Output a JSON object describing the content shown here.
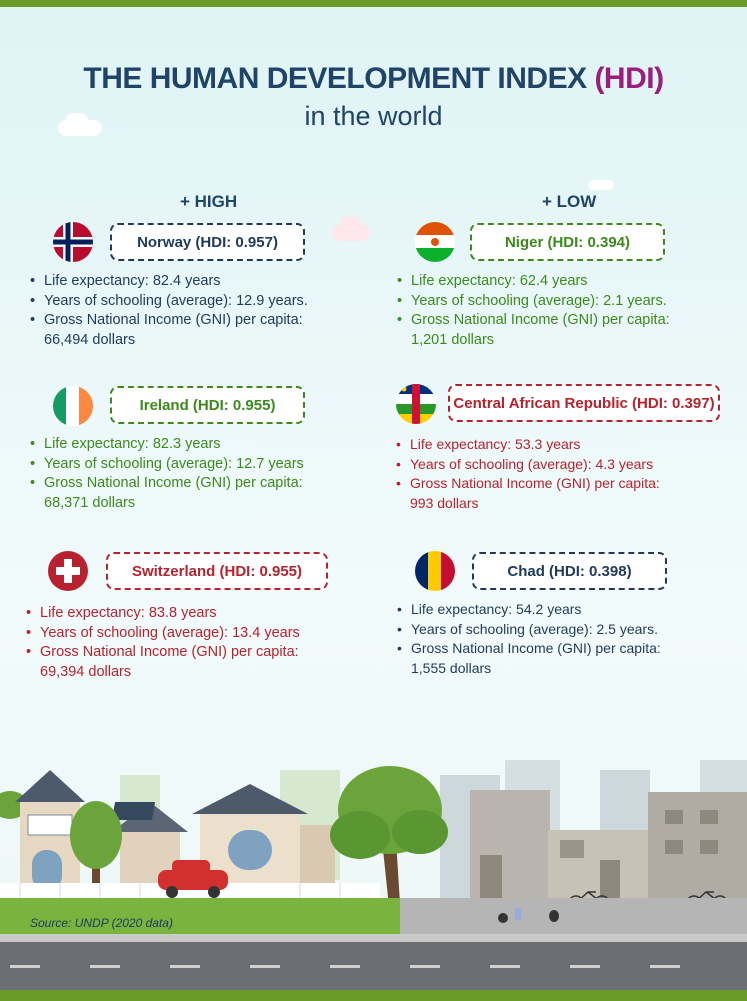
{
  "header": {
    "title_main": "THE HUMAN DEVELOPMENT INDEX",
    "title_abbr": "(HDI)",
    "subtitle": "in the world"
  },
  "columns": {
    "high": "+ HIGH",
    "low": "+ LOW"
  },
  "countries": {
    "norway": {
      "label": "Norway (HDI: 0.957)",
      "l1": "Life expectancy: 82.4 years",
      "l2": "Years of schooling (average): 12.9 years.",
      "l3": "Gross National Income (GNI) per capita:",
      "l4": "66,494 dollars"
    },
    "ireland": {
      "label": "Ireland (HDI: 0.955)",
      "l1": "Life expectancy: 82.3 years",
      "l2": "Years of schooling (average): 12.7 years",
      "l3": "Gross National Income (GNI) per capita:",
      "l4": "68,371 dollars"
    },
    "switzerland": {
      "label": "Switzerland (HDI: 0.955)",
      "l1": "Life expectancy: 83.8 years",
      "l2": "Years of schooling (average): 13.4 years",
      "l3": "Gross National Income (GNI) per capita:",
      "l4": "69,394 dollars"
    },
    "niger": {
      "label": "Niger (HDI: 0.394)",
      "l1": "Life expectancy: 62.4 years",
      "l2": "Years of schooling (average): 2.1 years.",
      "l3": "Gross National Income (GNI) per capita:",
      "l4": "1,201 dollars"
    },
    "car": {
      "label": "Central African Republic (HDI: 0.397)",
      "l1": "Life expectancy: 53.3 years",
      "l2": "Years of schooling (average): 4.3 years",
      "l3": "Gross National Income (GNI) per capita:",
      "l4": "993 dollars"
    },
    "chad": {
      "label": "Chad (HDI: 0.398)",
      "l1": "Life expectancy: 54.2 years",
      "l2": "Years of schooling (average): 2.5 years.",
      "l3": "Gross National Income (GNI) per capita:",
      "l4": "1,555 dollars"
    }
  },
  "source": "Source: UNDP (2020 data)",
  "colors": {
    "navy": "#1f3a5c",
    "green": "#3c8a1c",
    "red": "#b7222e",
    "magenta": "#9b1e7c"
  }
}
